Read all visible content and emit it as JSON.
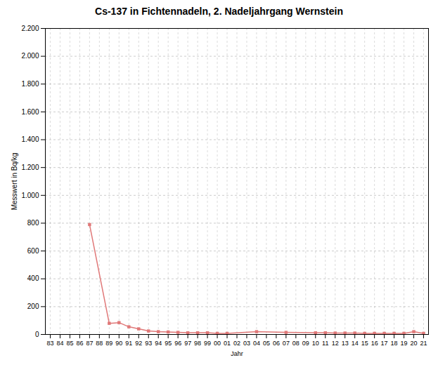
{
  "chart_data": {
    "type": "line",
    "title": "Cs-137 in Fichtennadeln, 2. Nadeljahrgang Wernstein",
    "xlabel": "Jahr",
    "ylabel": "Messwert in Bq/kg",
    "categories": [
      "83",
      "84",
      "85",
      "86",
      "87",
      "88",
      "89",
      "90",
      "91",
      "92",
      "93",
      "94",
      "95",
      "96",
      "97",
      "98",
      "99",
      "00",
      "01",
      "02",
      "03",
      "04",
      "05",
      "06",
      "07",
      "08",
      "09",
      "10",
      "11",
      "12",
      "13",
      "14",
      "15",
      "16",
      "17",
      "18",
      "19",
      "20",
      "21"
    ],
    "values": [
      null,
      null,
      null,
      null,
      790,
      null,
      80,
      85,
      55,
      40,
      25,
      20,
      18,
      15,
      12,
      12,
      12,
      8,
      8,
      null,
      null,
      20,
      null,
      null,
      15,
      null,
      null,
      12,
      12,
      10,
      10,
      10,
      8,
      8,
      8,
      8,
      8,
      20,
      8
    ],
    "color": "#e07878",
    "marker": "square",
    "ylim": [
      0,
      2200
    ],
    "yticks": [
      0,
      200,
      400,
      600,
      800,
      {
        "value": 1000,
        "label": "1.000"
      },
      {
        "value": 1200,
        "label": "1.200"
      },
      {
        "value": 1400,
        "label": "1.400"
      },
      {
        "value": 1600,
        "label": "1.600"
      },
      {
        "value": 1800,
        "label": "1.800"
      },
      {
        "value": 2000,
        "label": "2.000"
      },
      {
        "value": 2200,
        "label": "2.200"
      }
    ],
    "grid": true
  }
}
